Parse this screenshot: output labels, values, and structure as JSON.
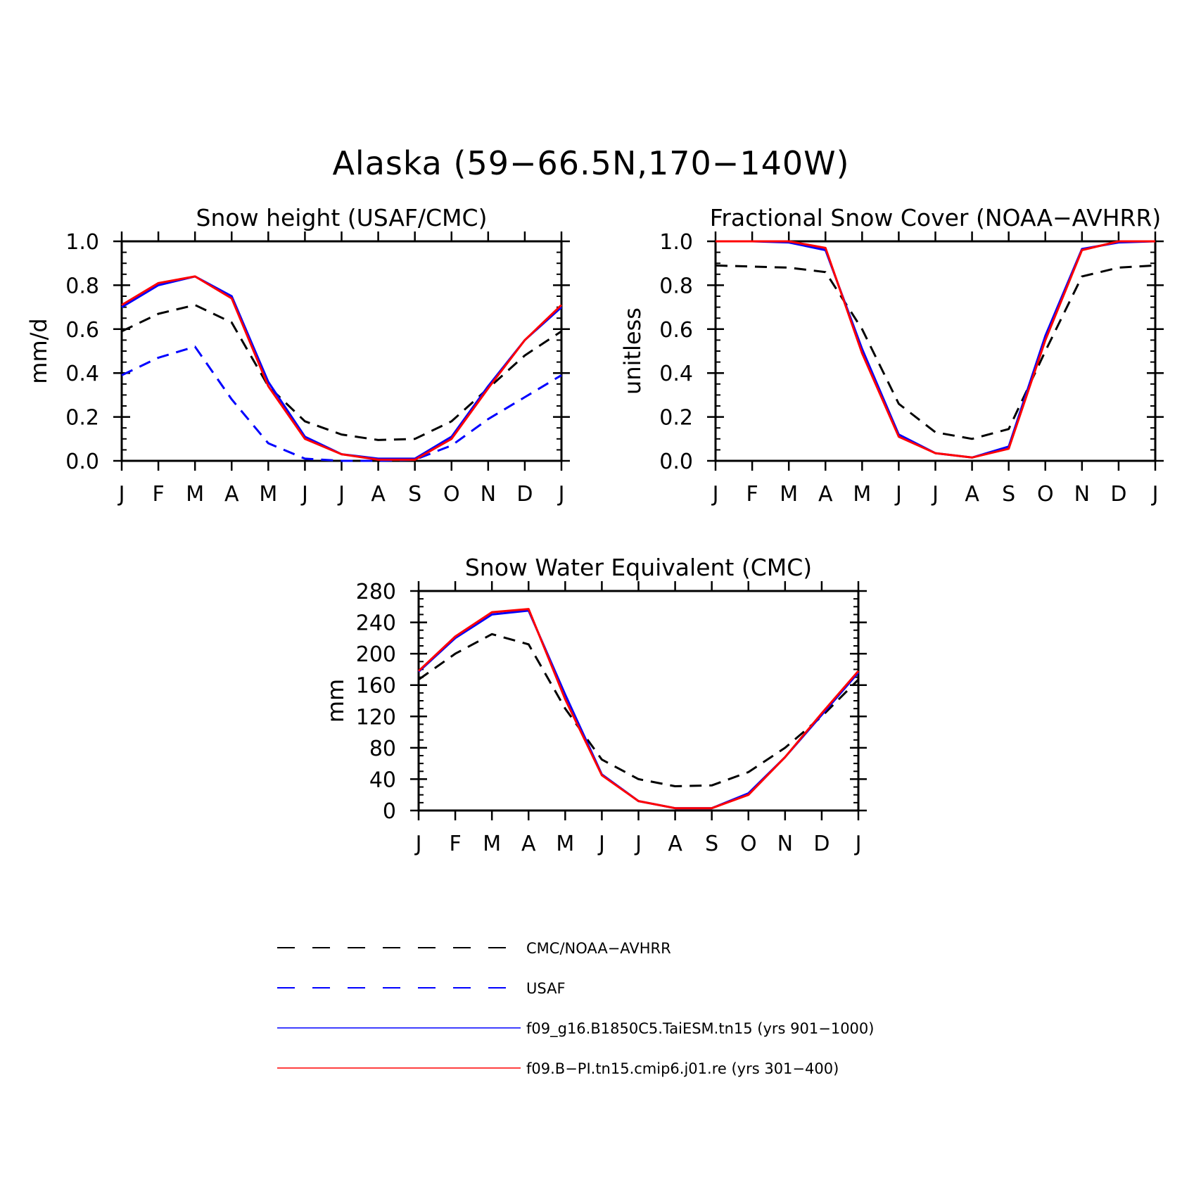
{
  "title": "Alaska (59−66.5N,170−140W)",
  "chart_data": [
    {
      "type": "line",
      "title": "Snow height (USAF/CMC)",
      "ylabel": "mm/d",
      "categories": [
        "J",
        "F",
        "M",
        "A",
        "M",
        "J",
        "J",
        "A",
        "S",
        "O",
        "N",
        "D",
        "J"
      ],
      "ylim": [
        0,
        1.0
      ],
      "yticks": [
        "0.0",
        "0.2",
        "0.4",
        "0.6",
        "0.8",
        "1.0"
      ],
      "series": [
        {
          "name": "CMC/NOAA−AVHRR",
          "color": "#000000",
          "dash": true,
          "values": [
            0.59,
            0.67,
            0.71,
            0.63,
            0.34,
            0.18,
            0.12,
            0.095,
            0.1,
            0.18,
            0.33,
            0.48,
            0.59
          ]
        },
        {
          "name": "USAF",
          "color": "#0000ff",
          "dash": true,
          "values": [
            0.39,
            0.47,
            0.52,
            0.28,
            0.08,
            0.01,
            0.0,
            0.0,
            0.005,
            0.07,
            0.19,
            0.29,
            0.39
          ]
        },
        {
          "name": "f09_g16.B1850C5.TaiESM.tn15 (yrs 901−1000)",
          "color": "#0000ff",
          "dash": false,
          "values": [
            0.7,
            0.8,
            0.84,
            0.75,
            0.36,
            0.11,
            0.03,
            0.01,
            0.01,
            0.11,
            0.34,
            0.55,
            0.7
          ]
        },
        {
          "name": "f09.B−PI.tn15.cmip6.j01.re (yrs 301−400)",
          "color": "#ff0000",
          "dash": false,
          "values": [
            0.71,
            0.81,
            0.84,
            0.74,
            0.34,
            0.1,
            0.03,
            0.005,
            0.005,
            0.1,
            0.33,
            0.55,
            0.71
          ]
        }
      ]
    },
    {
      "type": "line",
      "title": "Fractional Snow Cover (NOAA−AVHRR)",
      "ylabel": "unitless",
      "categories": [
        "J",
        "F",
        "M",
        "A",
        "M",
        "J",
        "J",
        "A",
        "S",
        "O",
        "N",
        "D",
        "J"
      ],
      "ylim": [
        0,
        1.0
      ],
      "yticks": [
        "0.0",
        "0.2",
        "0.4",
        "0.6",
        "0.8",
        "1.0"
      ],
      "series": [
        {
          "name": "CMC/NOAA−AVHRR",
          "color": "#000000",
          "dash": true,
          "values": [
            0.89,
            0.885,
            0.88,
            0.86,
            0.6,
            0.26,
            0.13,
            0.1,
            0.145,
            0.5,
            0.84,
            0.88,
            0.89
          ]
        },
        {
          "name": "f09_g16.B1850C5.TaiESM.tn15 (yrs 901−1000)",
          "color": "#0000ff",
          "dash": false,
          "values": [
            1.0,
            1.0,
            0.995,
            0.96,
            0.51,
            0.12,
            0.035,
            0.015,
            0.065,
            0.57,
            0.965,
            0.995,
            1.0
          ]
        },
        {
          "name": "f09.B−PI.tn15.cmip6.j01.re (yrs 301−400)",
          "color": "#ff0000",
          "dash": false,
          "values": [
            1.0,
            1.0,
            1.0,
            0.97,
            0.49,
            0.11,
            0.035,
            0.015,
            0.055,
            0.55,
            0.96,
            1.0,
            1.0
          ]
        }
      ]
    },
    {
      "type": "line",
      "title": "Snow Water Equivalent (CMC)",
      "ylabel": "mm",
      "categories": [
        "J",
        "F",
        "M",
        "A",
        "M",
        "J",
        "J",
        "A",
        "S",
        "O",
        "N",
        "D",
        "J"
      ],
      "ylim": [
        0,
        280
      ],
      "yticks": [
        "0",
        "40",
        "80",
        "120",
        "160",
        "200",
        "240",
        "280"
      ],
      "series": [
        {
          "name": "CMC/NOAA−AVHRR",
          "color": "#000000",
          "dash": true,
          "values": [
            167,
            200,
            225,
            212,
            130,
            65,
            40,
            31,
            32,
            49,
            80,
            120,
            167
          ]
        },
        {
          "name": "f09_g16.B1850C5.TaiESM.tn15 (yrs 901−1000)",
          "color": "#0000ff",
          "dash": false,
          "values": [
            177,
            220,
            250,
            255,
            148,
            46,
            12,
            3,
            3,
            22,
            68,
            122,
            176
          ]
        },
        {
          "name": "f09.B−PI.tn15.cmip6.j01.re (yrs 301−400)",
          "color": "#ff0000",
          "dash": false,
          "values": [
            178,
            222,
            253,
            257,
            142,
            45,
            12,
            3,
            3,
            20,
            68,
            124,
            178
          ]
        }
      ]
    }
  ],
  "legend": [
    {
      "label": "CMC/NOAA−AVHRR",
      "color": "#000000",
      "dash": true
    },
    {
      "label": "USAF",
      "color": "#0000ff",
      "dash": true
    },
    {
      "label": "f09_g16.B1850C5.TaiESM.tn15 (yrs 901−1000)",
      "color": "#0000ff",
      "dash": false
    },
    {
      "label": "f09.B−PI.tn15.cmip6.j01.re (yrs 301−400)",
      "color": "#ff0000",
      "dash": false
    }
  ]
}
